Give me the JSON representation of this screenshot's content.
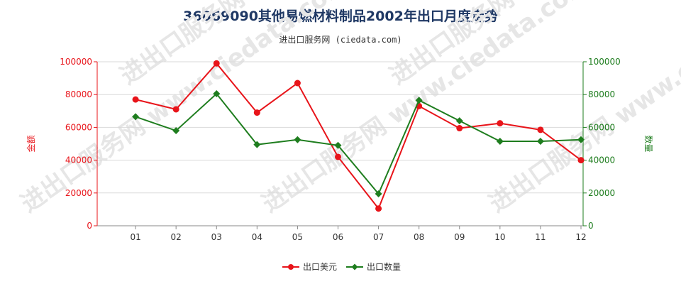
{
  "title": "36069090其他易燃材料制品2002年出口月度走势",
  "subtitle": "进出口服务网 (ciedata.com)",
  "watermark": "进出口服务网 www.ciedata.com",
  "colors": {
    "left_axis": "#e8141a",
    "right_axis": "#1e7d1e",
    "grid": "#d9d9d9"
  },
  "chart_data": {
    "type": "line",
    "categories": [
      "01",
      "02",
      "03",
      "04",
      "05",
      "06",
      "07",
      "08",
      "09",
      "10",
      "11",
      "12"
    ],
    "ylabel_left": "金额",
    "ylabel_right": "数量",
    "ylim_left": [
      0,
      100000
    ],
    "ylim_right": [
      0,
      100000
    ],
    "yticks": [
      "0",
      "20000",
      "40000",
      "60000",
      "80000",
      "100000"
    ],
    "grid": true,
    "legend_position": "bottom",
    "series": [
      {
        "name": "出口美元",
        "color": "#e8141a",
        "axis": "left",
        "values": [
          77000,
          71000,
          99000,
          69000,
          87000,
          42000,
          10500,
          73000,
          59500,
          62500,
          58500,
          40000
        ]
      },
      {
        "name": "出口数量",
        "color": "#1e7d1e",
        "axis": "right",
        "values": [
          66500,
          58000,
          80500,
          49500,
          52500,
          49000,
          19500,
          76500,
          64000,
          51500,
          51500,
          52500
        ]
      }
    ]
  }
}
